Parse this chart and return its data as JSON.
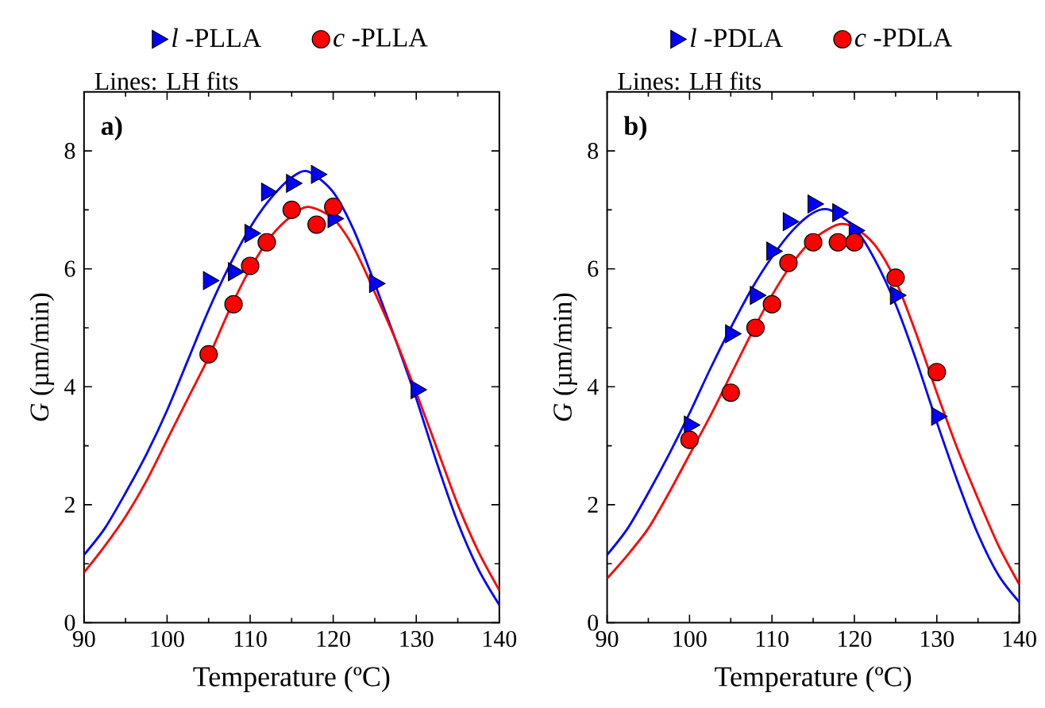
{
  "chart_data": [
    {
      "type": "scatter",
      "title": "a)",
      "subtitle": "Lines: LH fits",
      "xlabel": "Temperature (ºC)",
      "ylabel": "*G* (µm/min)",
      "xlim": [
        90,
        140
      ],
      "ylim": [
        0,
        9
      ],
      "xticks": [
        90,
        100,
        110,
        120,
        130,
        140
      ],
      "yticks": [
        0,
        2,
        4,
        6,
        8
      ],
      "legend": "top",
      "series": [
        {
          "type": "line",
          "color": "#0000ff",
          "x": [
            90,
            92.5,
            95,
            97.5,
            100,
            102.5,
            105,
            107.5,
            110,
            112.5,
            115,
            117,
            120,
            122.5,
            125,
            127.5,
            130,
            132.5,
            135,
            137.5,
            140
          ],
          "values": [
            1.15,
            1.6,
            2.2,
            2.85,
            3.6,
            4.45,
            5.3,
            6.05,
            6.7,
            7.2,
            7.55,
            7.65,
            7.3,
            6.65,
            5.75,
            4.8,
            3.8,
            2.7,
            1.7,
            0.9,
            0.3
          ]
        },
        {
          "type": "line",
          "color": "#ff0000",
          "x": [
            90,
            92.5,
            95,
            97.5,
            100,
            102.5,
            105,
            107.5,
            110,
            112.5,
            115,
            117,
            120,
            122.5,
            125,
            127.5,
            130,
            132.5,
            135,
            137.5,
            140
          ],
          "values": [
            0.85,
            1.3,
            1.8,
            2.4,
            3.1,
            3.8,
            4.5,
            5.3,
            6.0,
            6.55,
            6.9,
            7.05,
            6.85,
            6.35,
            5.6,
            4.8,
            3.9,
            2.95,
            2.0,
            1.2,
            0.55
          ]
        },
        {
          "name": "*l* -PLLA",
          "color": "#0000ff",
          "marker": "triangle",
          "x": [
            105,
            108,
            110,
            112,
            115,
            118,
            120,
            125,
            130
          ],
          "values": [
            5.8,
            5.95,
            6.6,
            7.3,
            7.45,
            7.6,
            6.85,
            5.75,
            3.95
          ]
        },
        {
          "name": "*c* -PLLA",
          "color": "#ff0000",
          "marker": "circle",
          "x": [
            105,
            108,
            110,
            112,
            115,
            118,
            120
          ],
          "values": [
            4.55,
            5.4,
            6.05,
            6.45,
            7.0,
            6.75,
            7.05
          ]
        }
      ]
    },
    {
      "type": "scatter",
      "title": "b)",
      "subtitle": "Lines: LH fits",
      "xlabel": "Temperature (ºC)",
      "ylabel": "*G* (µm/min)",
      "xlim": [
        90,
        140
      ],
      "ylim": [
        0,
        9
      ],
      "xticks": [
        90,
        100,
        110,
        120,
        130,
        140
      ],
      "yticks": [
        0,
        2,
        4,
        6,
        8
      ],
      "legend": "top",
      "series": [
        {
          "type": "line",
          "color": "#0000ff",
          "x": [
            90,
            92.5,
            95,
            97.5,
            100,
            102.5,
            105,
            107.5,
            110,
            112.5,
            115,
            117,
            120,
            122.5,
            125,
            127.5,
            130,
            132.5,
            135,
            137.5,
            140
          ],
          "values": [
            1.15,
            1.6,
            2.2,
            2.85,
            3.55,
            4.3,
            5.0,
            5.65,
            6.2,
            6.65,
            6.95,
            7.0,
            6.7,
            6.15,
            5.4,
            4.45,
            3.4,
            2.4,
            1.5,
            0.8,
            0.35
          ]
        },
        {
          "type": "line",
          "color": "#ff0000",
          "x": [
            90,
            92.5,
            95,
            97.5,
            100,
            102.5,
            105,
            107.5,
            110,
            112.5,
            115,
            118,
            120,
            122.5,
            125,
            127.5,
            130,
            132.5,
            135,
            137.5,
            140
          ],
          "values": [
            0.75,
            1.15,
            1.6,
            2.2,
            2.85,
            3.5,
            4.2,
            4.9,
            5.55,
            6.1,
            6.5,
            6.75,
            6.7,
            6.4,
            5.8,
            4.9,
            3.9,
            2.95,
            2.1,
            1.3,
            0.65
          ]
        },
        {
          "name": "*l* -PDLA",
          "color": "#0000ff",
          "marker": "triangle",
          "x": [
            100,
            105,
            108,
            110,
            112,
            115,
            118,
            120,
            125,
            130
          ],
          "values": [
            3.35,
            4.9,
            5.55,
            6.3,
            6.8,
            7.1,
            6.95,
            6.65,
            5.55,
            3.5
          ]
        },
        {
          "name": "*c* -PDLA",
          "color": "#ff0000",
          "marker": "circle",
          "x": [
            100,
            105,
            108,
            110,
            112,
            115,
            118,
            120,
            125,
            130
          ],
          "values": [
            3.1,
            3.9,
            5.0,
            5.4,
            6.1,
            6.45,
            6.45,
            6.45,
            5.85,
            4.25
          ]
        }
      ]
    }
  ]
}
